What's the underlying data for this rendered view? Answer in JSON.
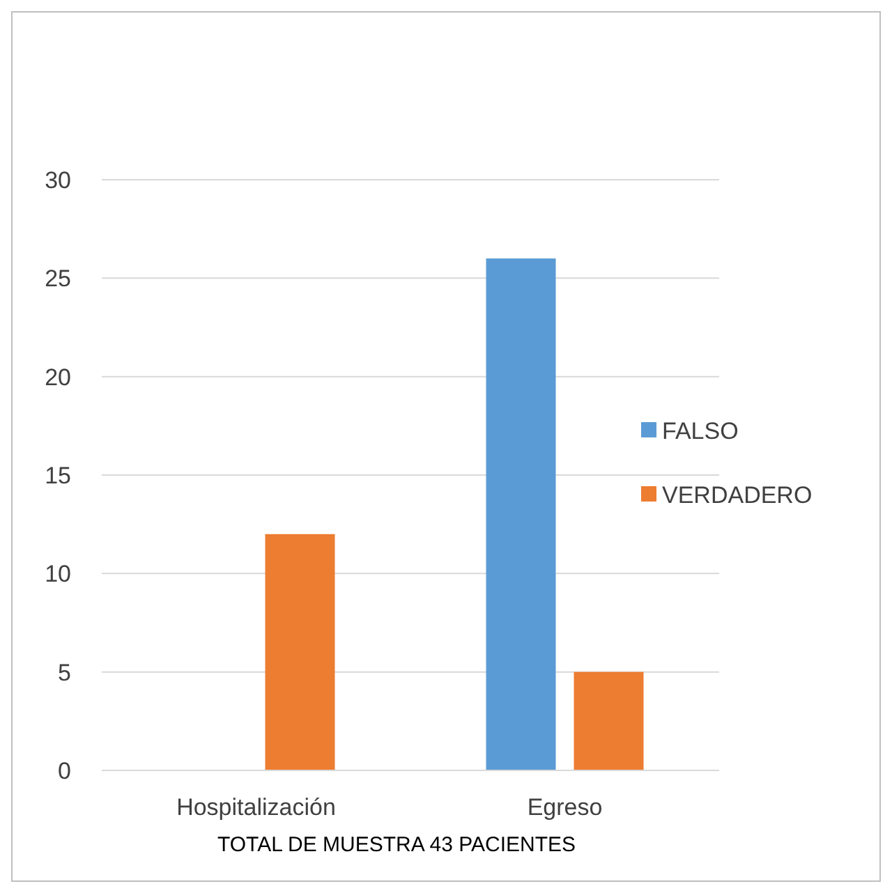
{
  "chart_data": {
    "type": "bar",
    "categories": [
      "Hospitalización",
      "Egreso"
    ],
    "series": [
      {
        "name": "FALSO",
        "color": "#5b9bd5",
        "values": [
          0,
          26
        ]
      },
      {
        "name": "VERDADERO",
        "color": "#ed7d31",
        "values": [
          12,
          5
        ]
      }
    ],
    "ylim": [
      0,
      30
    ],
    "yticks": [
      0,
      5,
      10,
      15,
      20,
      25,
      30
    ],
    "grid": "y",
    "legend": "right",
    "xlabel": "TOTAL DE MUESTRA 43 PACIENTES"
  }
}
